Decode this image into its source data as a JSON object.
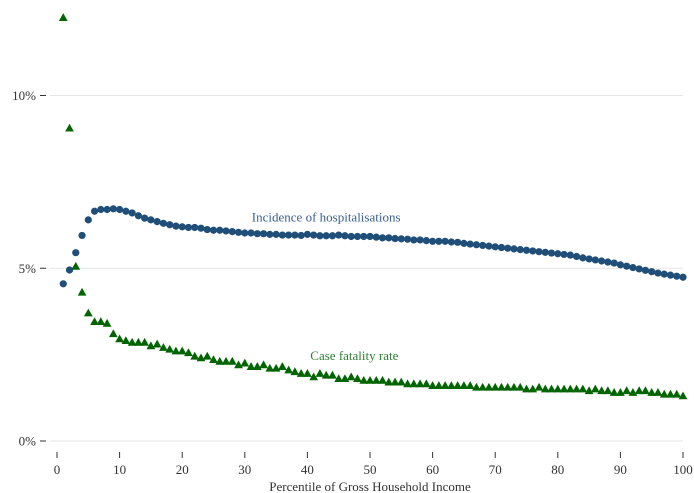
{
  "chart_data": {
    "type": "scatter",
    "xlabel": "Percentile of Gross Household Income",
    "ylabel": "",
    "xlim": [
      0,
      100
    ],
    "ylim": [
      0,
      12.3
    ],
    "x_ticks": [
      0,
      10,
      20,
      30,
      40,
      50,
      60,
      70,
      80,
      90,
      100
    ],
    "y_ticks": [
      0,
      5,
      10
    ],
    "y_tick_labels": [
      "0%",
      "5%",
      "10%"
    ],
    "grid": "horizontal",
    "legend": "none",
    "series": [
      {
        "name": "Incidence of hospitalisations",
        "marker": "circle",
        "color": "#1f4e79",
        "x": [
          1,
          2,
          3,
          4,
          5,
          6,
          7,
          8,
          9,
          10,
          11,
          12,
          13,
          14,
          15,
          16,
          17,
          18,
          19,
          20,
          21,
          22,
          23,
          24,
          25,
          26,
          27,
          28,
          29,
          30,
          31,
          32,
          33,
          34,
          35,
          36,
          37,
          38,
          39,
          40,
          41,
          42,
          43,
          44,
          45,
          46,
          47,
          48,
          49,
          50,
          51,
          52,
          53,
          54,
          55,
          56,
          57,
          58,
          59,
          60,
          61,
          62,
          63,
          64,
          65,
          66,
          67,
          68,
          69,
          70,
          71,
          72,
          73,
          74,
          75,
          76,
          77,
          78,
          79,
          80,
          81,
          82,
          83,
          84,
          85,
          86,
          87,
          88,
          89,
          90,
          91,
          92,
          93,
          94,
          95,
          96,
          97,
          98,
          99,
          100
        ],
        "y": [
          4.55,
          4.95,
          5.45,
          5.95,
          6.4,
          6.65,
          6.7,
          6.7,
          6.72,
          6.7,
          6.65,
          6.6,
          6.52,
          6.45,
          6.4,
          6.35,
          6.3,
          6.26,
          6.22,
          6.2,
          6.18,
          6.18,
          6.16,
          6.12,
          6.1,
          6.1,
          6.08,
          6.06,
          6.04,
          6.02,
          6.02,
          6.0,
          6.0,
          5.98,
          5.98,
          5.96,
          5.96,
          5.96,
          5.95,
          5.98,
          5.96,
          5.94,
          5.94,
          5.94,
          5.96,
          5.94,
          5.92,
          5.92,
          5.92,
          5.92,
          5.9,
          5.88,
          5.88,
          5.86,
          5.85,
          5.84,
          5.82,
          5.82,
          5.8,
          5.78,
          5.78,
          5.78,
          5.76,
          5.75,
          5.72,
          5.7,
          5.68,
          5.66,
          5.64,
          5.62,
          5.6,
          5.58,
          5.56,
          5.54,
          5.52,
          5.5,
          5.48,
          5.46,
          5.44,
          5.42,
          5.4,
          5.38,
          5.34,
          5.3,
          5.27,
          5.24,
          5.21,
          5.18,
          5.15,
          5.1,
          5.06,
          5.02,
          4.98,
          4.94,
          4.9,
          4.86,
          4.83,
          4.8,
          4.77,
          4.74
        ]
      },
      {
        "name": "Case fatality rate",
        "marker": "triangle",
        "color": "#006400",
        "x": [
          1,
          2,
          3,
          4,
          5,
          6,
          7,
          8,
          9,
          10,
          11,
          12,
          13,
          14,
          15,
          16,
          17,
          18,
          19,
          20,
          21,
          22,
          23,
          24,
          25,
          26,
          27,
          28,
          29,
          30,
          31,
          32,
          33,
          34,
          35,
          36,
          37,
          38,
          39,
          40,
          41,
          42,
          43,
          44,
          45,
          46,
          47,
          48,
          49,
          50,
          51,
          52,
          53,
          54,
          55,
          56,
          57,
          58,
          59,
          60,
          61,
          62,
          63,
          64,
          65,
          66,
          67,
          68,
          69,
          70,
          71,
          72,
          73,
          74,
          75,
          76,
          77,
          78,
          79,
          80,
          81,
          82,
          83,
          84,
          85,
          86,
          87,
          88,
          89,
          90,
          91,
          92,
          93,
          94,
          95,
          96,
          97,
          98,
          99,
          100
        ],
        "y": [
          12.25,
          9.05,
          5.05,
          4.3,
          3.7,
          3.45,
          3.45,
          3.4,
          3.1,
          2.95,
          2.9,
          2.85,
          2.85,
          2.85,
          2.75,
          2.8,
          2.7,
          2.65,
          2.6,
          2.6,
          2.55,
          2.45,
          2.4,
          2.45,
          2.35,
          2.3,
          2.3,
          2.3,
          2.2,
          2.25,
          2.15,
          2.15,
          2.2,
          2.1,
          2.1,
          2.15,
          2.05,
          2.0,
          1.95,
          1.95,
          1.85,
          1.95,
          1.9,
          1.9,
          1.8,
          1.8,
          1.85,
          1.8,
          1.75,
          1.75,
          1.75,
          1.75,
          1.7,
          1.7,
          1.7,
          1.65,
          1.65,
          1.65,
          1.65,
          1.6,
          1.6,
          1.6,
          1.6,
          1.6,
          1.6,
          1.6,
          1.55,
          1.55,
          1.55,
          1.55,
          1.55,
          1.55,
          1.55,
          1.55,
          1.5,
          1.5,
          1.55,
          1.5,
          1.5,
          1.5,
          1.5,
          1.5,
          1.5,
          1.5,
          1.45,
          1.5,
          1.45,
          1.45,
          1.4,
          1.4,
          1.45,
          1.4,
          1.45,
          1.45,
          1.4,
          1.4,
          1.35,
          1.35,
          1.35,
          1.3
        ]
      }
    ],
    "annotations": [
      {
        "text": "Incidence of hospitalisations",
        "series": 0,
        "x": 43,
        "y": 6.35
      },
      {
        "text": "Case fatality rate",
        "series": 1,
        "x": 47.5,
        "y": 2.35
      }
    ]
  }
}
